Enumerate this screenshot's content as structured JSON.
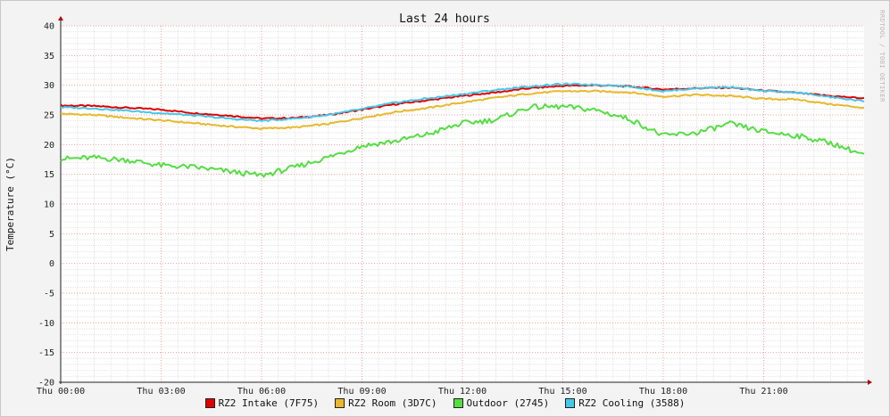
{
  "chart_data": {
    "type": "line",
    "title": "Last 24 hours",
    "ylabel": "Temperature (°C)",
    "ylim": [
      -20,
      40
    ],
    "yticks": [
      40,
      35,
      30,
      25,
      20,
      15,
      10,
      5,
      0,
      -5,
      -10,
      -15,
      -20
    ],
    "x_tick_labels": [
      "Thu 00:00",
      "Thu 03:00",
      "Thu 06:00",
      "Thu 09:00",
      "Thu 12:00",
      "Thu 15:00",
      "Thu 18:00",
      "Thu 21:00"
    ],
    "x_tick_hours": [
      0,
      3,
      6,
      9,
      12,
      15,
      18,
      21
    ],
    "xlim_hours": [
      0,
      24
    ],
    "grid": true,
    "legend_position": "bottom",
    "watermark": "RRDTOOL / TOBI OETIKER",
    "series": [
      {
        "name": "RZ2 Intake (7F75)",
        "color": "#e00000",
        "x": [
          0,
          1,
          2,
          3,
          4,
          5,
          6,
          7,
          8,
          9,
          10,
          11,
          12,
          13,
          14,
          15,
          16,
          17,
          18,
          19,
          20,
          21,
          22,
          23,
          24
        ],
        "y": [
          26.6,
          26.5,
          26.2,
          25.9,
          25.3,
          24.9,
          24.4,
          24.5,
          25.0,
          25.9,
          26.8,
          27.5,
          28.2,
          28.8,
          29.5,
          29.9,
          30.0,
          29.8,
          29.3,
          29.5,
          29.6,
          29.1,
          28.7,
          28.2,
          27.8
        ]
      },
      {
        "name": "RZ2 Room (3D7C)",
        "color": "#e8b82a",
        "x": [
          0,
          1,
          2,
          3,
          4,
          5,
          6,
          7,
          8,
          9,
          10,
          11,
          12,
          13,
          14,
          15,
          16,
          17,
          18,
          19,
          20,
          21,
          22,
          23,
          24
        ],
        "y": [
          25.2,
          25.0,
          24.5,
          24.1,
          23.6,
          23.1,
          22.7,
          22.9,
          23.5,
          24.5,
          25.5,
          26.2,
          27.1,
          27.9,
          28.6,
          29.0,
          29.0,
          28.8,
          28.1,
          28.4,
          28.2,
          27.7,
          27.6,
          26.8,
          26.2
        ]
      },
      {
        "name": "Outdoor (2745)",
        "color": "#55dd44",
        "x": [
          0,
          1,
          2,
          3,
          4,
          5,
          6,
          7,
          8,
          9,
          10,
          11,
          12,
          13,
          14,
          15,
          16,
          17,
          18,
          19,
          20,
          21,
          22,
          23,
          24
        ],
        "y": [
          17.6,
          17.8,
          17.4,
          16.5,
          16.2,
          15.5,
          14.8,
          16.2,
          17.9,
          19.8,
          20.6,
          21.8,
          23.6,
          24.2,
          26.3,
          26.4,
          25.8,
          24.3,
          21.5,
          22.0,
          23.5,
          22.2,
          21.5,
          20.3,
          18.3
        ]
      },
      {
        "name": "RZ2 Cooling (3588)",
        "color": "#44c8e8",
        "x": [
          0,
          1,
          2,
          3,
          4,
          5,
          6,
          7,
          8,
          9,
          10,
          11,
          12,
          13,
          14,
          15,
          16,
          17,
          18,
          19,
          20,
          21,
          22,
          23,
          24
        ],
        "y": [
          26.3,
          26.1,
          25.7,
          25.3,
          24.9,
          24.4,
          24.0,
          24.4,
          25.0,
          26.0,
          27.1,
          27.8,
          28.5,
          29.2,
          29.8,
          30.2,
          30.1,
          29.8,
          29.0,
          29.5,
          29.7,
          29.0,
          28.8,
          28.0,
          27.3
        ]
      }
    ]
  }
}
